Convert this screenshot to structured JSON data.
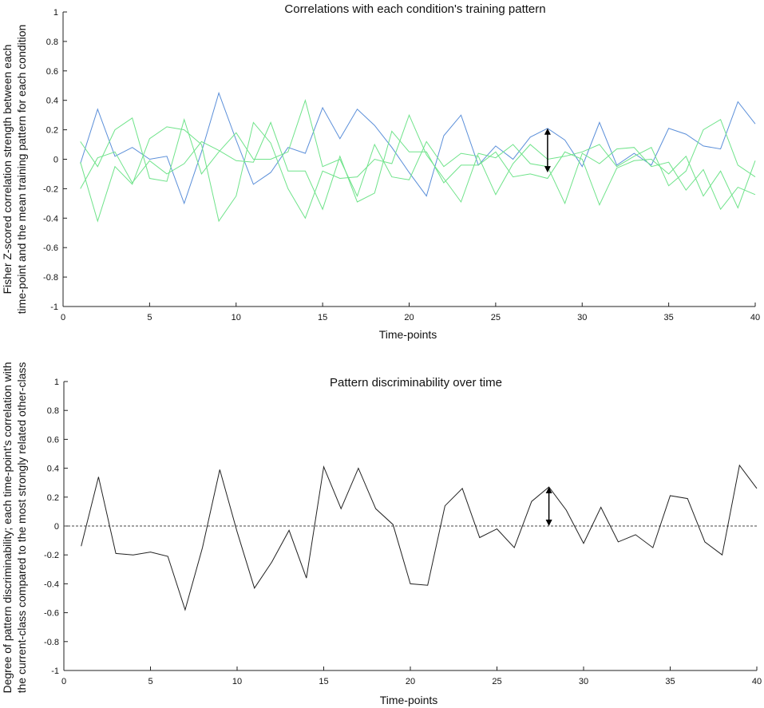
{
  "chart_data": [
    {
      "type": "line",
      "title": "Correlations with each condition's training pattern",
      "xlabel": "Time-points",
      "ylabel_lines": [
        "Fisher Z-scored correlation strength between each",
        "time-point and the mean training pattern for each condition"
      ],
      "xlim": [
        0,
        40
      ],
      "ylim": [
        -1,
        1
      ],
      "xticks": [
        0,
        5,
        10,
        15,
        20,
        25,
        30,
        35,
        40
      ],
      "yticks": [
        1,
        0.8,
        0.6,
        0.4,
        0.2,
        0,
        -0.2,
        -0.4,
        -0.6,
        -0.8,
        -1
      ],
      "x": [
        1,
        2,
        3,
        4,
        5,
        6,
        7,
        8,
        9,
        10,
        11,
        12,
        13,
        14,
        15,
        16,
        17,
        18,
        19,
        20,
        21,
        22,
        23,
        24,
        25,
        26,
        27,
        28,
        29,
        30,
        31,
        32,
        33,
        34,
        35,
        36,
        37,
        38,
        39,
        40
      ],
      "series": [
        {
          "color": "#5b8fd9",
          "values": [
            -0.03,
            0.34,
            0.02,
            0.08,
            0.0,
            0.02,
            -0.3,
            0.05,
            0.45,
            0.13,
            -0.17,
            -0.09,
            0.08,
            0.04,
            0.35,
            0.14,
            0.34,
            0.23,
            0.08,
            -0.09,
            -0.25,
            0.16,
            0.3,
            -0.04,
            0.09,
            0.0,
            0.15,
            0.21,
            0.13,
            -0.05,
            0.25,
            -0.04,
            0.04,
            -0.04,
            0.21,
            0.17,
            0.09,
            0.07,
            0.39,
            0.24
          ]
        },
        {
          "color": "#6fe38a",
          "values": [
            0.12,
            -0.05,
            0.2,
            0.28,
            -0.13,
            -0.15,
            0.27,
            -0.1,
            0.05,
            0.18,
            0.0,
            0.0,
            0.05,
            0.4,
            -0.05,
            0.0,
            -0.25,
            0.1,
            -0.12,
            -0.14,
            0.12,
            -0.05,
            0.04,
            0.02,
            -0.24,
            -0.03,
            0.1,
            0.0,
            0.02,
            0.05,
            0.1,
            -0.05,
            0.02,
            0.08,
            -0.18,
            -0.08,
            0.2,
            0.27,
            -0.04,
            -0.12
          ]
        },
        {
          "color": "#6fe38a",
          "values": [
            -0.02,
            -0.42,
            -0.05,
            -0.17,
            0.14,
            0.22,
            0.2,
            0.1,
            -0.42,
            -0.25,
            0.25,
            0.11,
            -0.2,
            -0.4,
            -0.08,
            -0.13,
            -0.12,
            0.0,
            -0.03,
            0.3,
            0.03,
            -0.13,
            -0.29,
            0.04,
            0.01,
            0.1,
            -0.03,
            -0.05,
            -0.3,
            0.04,
            -0.03,
            0.07,
            0.08,
            -0.05,
            -0.02,
            -0.21,
            -0.07,
            -0.34,
            -0.19,
            -0.24
          ]
        },
        {
          "color": "#6fe38a",
          "values": [
            -0.2,
            0.01,
            0.05,
            -0.16,
            -0.01,
            -0.1,
            -0.03,
            0.12,
            0.06,
            -0.01,
            -0.02,
            0.25,
            -0.08,
            -0.08,
            -0.34,
            0.02,
            -0.29,
            -0.23,
            0.19,
            0.05,
            0.05,
            -0.16,
            -0.04,
            -0.04,
            0.05,
            -0.12,
            -0.1,
            -0.13,
            0.05,
            0.0,
            -0.31,
            -0.06,
            -0.01,
            0.0,
            -0.1,
            0.02,
            -0.25,
            -0.08,
            -0.33,
            -0.01
          ]
        }
      ],
      "annotation": {
        "type": "double-arrow",
        "x": 28,
        "y_from": 0.21,
        "y_to": -0.09
      }
    },
    {
      "type": "line",
      "title": "Pattern discriminability over time",
      "xlabel": "Time-points",
      "ylabel_lines": [
        "Degree of pattern discriminability; each time-point's correlation with",
        "the current-class compared to the most strongly related other-class"
      ],
      "xlim": [
        0,
        40
      ],
      "ylim": [
        -1,
        1
      ],
      "xticks": [
        0,
        5,
        10,
        15,
        20,
        25,
        30,
        35,
        40
      ],
      "yticks": [
        1,
        0.8,
        0.6,
        0.4,
        0.2,
        0,
        -0.2,
        -0.4,
        -0.6,
        -0.8,
        -1
      ],
      "x": [
        1,
        2,
        3,
        4,
        5,
        6,
        7,
        8,
        9,
        10,
        11,
        12,
        13,
        14,
        15,
        16,
        17,
        18,
        19,
        20,
        21,
        22,
        23,
        24,
        25,
        26,
        27,
        28,
        29,
        30,
        31,
        32,
        33,
        34,
        35,
        36,
        37,
        38,
        39,
        40
      ],
      "series": [
        {
          "color": "#222222",
          "values": [
            -0.14,
            0.34,
            -0.19,
            -0.2,
            -0.18,
            -0.21,
            -0.58,
            -0.15,
            0.39,
            -0.04,
            -0.43,
            -0.25,
            -0.03,
            -0.36,
            0.41,
            0.12,
            0.4,
            0.12,
            0.01,
            -0.4,
            -0.41,
            0.14,
            0.26,
            -0.08,
            -0.02,
            -0.15,
            0.17,
            0.27,
            0.11,
            -0.12,
            0.13,
            -0.11,
            -0.06,
            -0.15,
            0.21,
            0.19,
            -0.11,
            -0.2,
            0.42,
            0.26
          ]
        }
      ],
      "reference_line": {
        "y": 0,
        "style": "dashed"
      },
      "annotation": {
        "type": "double-arrow",
        "x": 28,
        "y_from": 0.27,
        "y_to": 0.0
      }
    }
  ]
}
